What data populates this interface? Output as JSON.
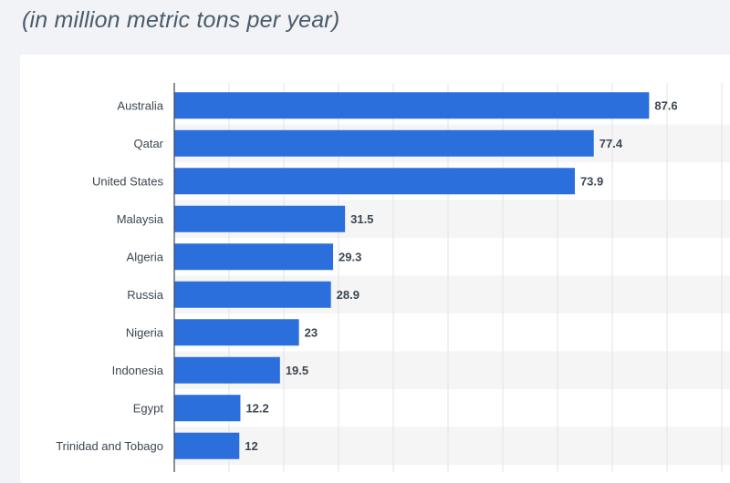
{
  "subtitle": "(in million metric tons per year)",
  "colors": {
    "bar": "#2b6fdd",
    "stripe": "#f5f5f5",
    "grid": "#e3e3e3",
    "axis": "#3c4652"
  },
  "chart_data": {
    "type": "bar",
    "orientation": "horizontal",
    "title": "",
    "xlabel": "",
    "ylabel": "",
    "categories": [
      "Australia",
      "Qatar",
      "United States",
      "Malaysia",
      "Algeria",
      "Russia",
      "Nigeria",
      "Indonesia",
      "Egypt",
      "Trinidad and Tobago"
    ],
    "values": [
      87.6,
      77.4,
      73.9,
      31.5,
      29.3,
      28.9,
      23,
      19.5,
      12.2,
      12
    ],
    "value_labels": [
      "87.6",
      "77.4",
      "73.9",
      "31.5",
      "29.3",
      "28.9",
      "23",
      "19.5",
      "12.2",
      "12"
    ],
    "xlim": [
      0,
      100
    ],
    "grid": true
  }
}
